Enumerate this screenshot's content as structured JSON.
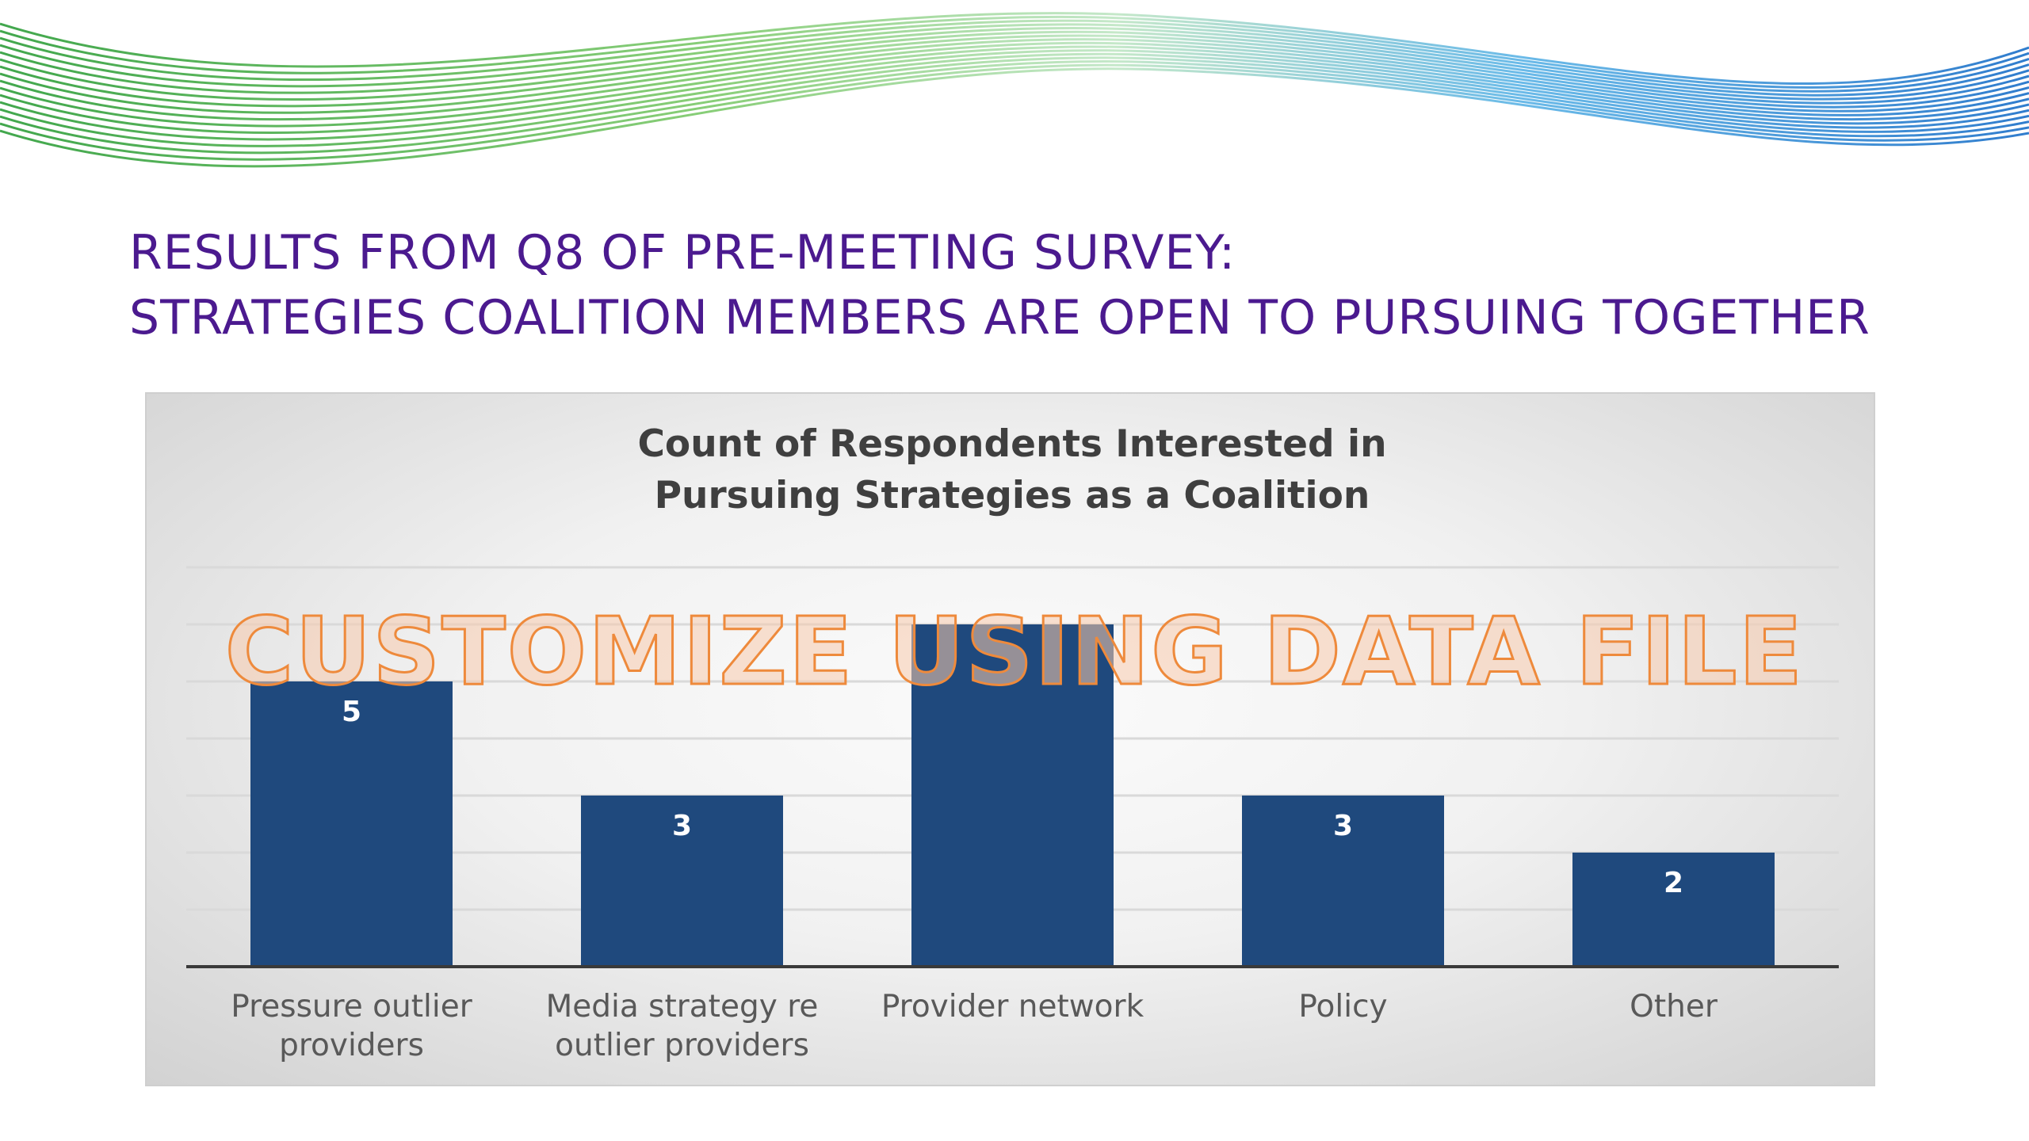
{
  "slide": {
    "title_line1": "RESULTS FROM Q8 OF PRE-MEETING SURVEY:",
    "title_line2": "STRATEGIES COALITION MEMBERS ARE OPEN TO PURSUING TOGETHER",
    "title_color": "#4b1a8f",
    "watermark": "CUSTOMIZE USING DATA FILE"
  },
  "chart_data": {
    "type": "bar",
    "title_lines": [
      "Count of Respondents Interested in",
      "Pursuing Strategies as a Coalition"
    ],
    "categories": [
      [
        "Pressure outlier",
        "providers"
      ],
      [
        "Media strategy re",
        "outlier providers"
      ],
      [
        "Provider network"
      ],
      [
        "Policy"
      ],
      [
        "Other"
      ]
    ],
    "values": [
      5,
      3,
      6,
      3,
      2
    ],
    "value_labels": [
      "5",
      "3",
      "",
      "3",
      "2"
    ],
    "ylim": [
      0,
      7
    ],
    "gridlines": true,
    "bar_color": "#1f497d"
  }
}
